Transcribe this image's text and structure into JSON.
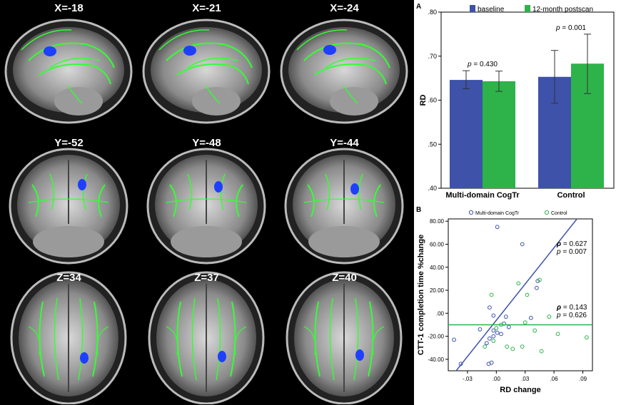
{
  "brain_slices": [
    {
      "label": "X=-18",
      "view": "sagittal"
    },
    {
      "label": "X=-21",
      "view": "sagittal"
    },
    {
      "label": "X=-24",
      "view": "sagittal"
    },
    {
      "label": "Y=-52",
      "view": "coronal"
    },
    {
      "label": "Y=-48",
      "view": "coronal"
    },
    {
      "label": "Y=-44",
      "view": "coronal"
    },
    {
      "label": "Z=34",
      "view": "axial"
    },
    {
      "label": "Z=37",
      "view": "axial"
    },
    {
      "label": "Z=40",
      "view": "axial"
    }
  ],
  "colors": {
    "blue": "#3d52a8",
    "green": "#2db34a",
    "tract": "#33ff33",
    "cluster": "#1f3fff"
  },
  "chart_data": [
    {
      "panel": "A",
      "type": "bar",
      "categories": [
        "Multi-domain CogTr",
        "Control"
      ],
      "series": [
        {
          "name": "baseline",
          "values": [
            0.646,
            0.653
          ],
          "ci_low": [
            0.626,
            0.593
          ],
          "ci_high": [
            0.667,
            0.713
          ],
          "color": "#3d52a8"
        },
        {
          "name": "12-month postscan",
          "values": [
            0.643,
            0.683
          ],
          "ci_low": [
            0.62,
            0.615
          ],
          "ci_high": [
            0.666,
            0.75
          ],
          "color": "#2db34a"
        }
      ],
      "ylabel": "RD",
      "ylim": [
        0.4,
        0.8
      ],
      "yticks": [
        ".40",
        ".50",
        ".60",
        ".70",
        ".80"
      ],
      "annotations": [
        {
          "prefix": "p",
          "text": " = 0.430"
        },
        {
          "prefix": "p",
          "text": " = 0.001"
        }
      ],
      "legend_position": "top"
    },
    {
      "panel": "B",
      "type": "scatter",
      "xlabel": "RD change",
      "ylabel": "CTT-1 completion time %change",
      "xlim": [
        -0.05,
        0.1
      ],
      "ylim": [
        -50,
        82
      ],
      "xticks": [
        {
          "value": -0.03,
          "label": "-.03"
        },
        {
          "value": 0.0,
          "label": ".00"
        },
        {
          "value": 0.03,
          "label": ".03"
        },
        {
          "value": 0.06,
          "label": ".06"
        },
        {
          "value": 0.09,
          "label": ".09"
        }
      ],
      "yticks": [
        {
          "value": -40,
          "label": "-40.00"
        },
        {
          "value": -20,
          "label": "-20.00"
        },
        {
          "value": 0,
          "label": ".00"
        },
        {
          "value": 20,
          "label": "20.00"
        },
        {
          "value": 40,
          "label": "40.00"
        },
        {
          "value": 60,
          "label": "60.00"
        },
        {
          "value": 80,
          "label": "80.00"
        }
      ],
      "series": [
        {
          "name": "Multi-domain CogTr",
          "color": "#3d52a8",
          "points": [
            [
              0.001,
              75
            ],
            [
              0.027,
              60
            ],
            [
              0.043,
              28
            ],
            [
              0.042,
              22
            ],
            [
              -0.007,
              5
            ],
            [
              -0.003,
              -2
            ],
            [
              0.01,
              -3
            ],
            [
              0.036,
              -4
            ],
            [
              0.008,
              -9
            ],
            [
              -0.017,
              -14
            ],
            [
              0.013,
              -12
            ],
            [
              -0.003,
              -15
            ],
            [
              -0.003,
              -20
            ],
            [
              0.005,
              -18
            ],
            [
              -0.007,
              -22
            ],
            [
              0.001,
              -17
            ],
            [
              -0.01,
              -26
            ],
            [
              -0.044,
              -23
            ],
            [
              -0.037,
              -44
            ],
            [
              -0.008,
              -44
            ],
            [
              -0.005,
              -43
            ]
          ],
          "fit": {
            "intercept": -6.1,
            "slope": 1050
          },
          "stats": [
            {
              "prefix": "ρ",
              "text": " = 0.627"
            },
            {
              "prefix": "p",
              "text": " = 0.007"
            }
          ]
        },
        {
          "name": "Control",
          "color": "#2db34a",
          "points": [
            [
              0.023,
              26
            ],
            [
              -0.005,
              16
            ],
            [
              0.032,
              16
            ],
            [
              0.045,
              29
            ],
            [
              0.03,
              -8
            ],
            [
              0.055,
              -3
            ],
            [
              0.04,
              -15
            ],
            [
              0.064,
              -18
            ],
            [
              0.027,
              -29
            ],
            [
              -0.012,
              -29
            ],
            [
              0.011,
              -29
            ],
            [
              -0.003,
              -24
            ],
            [
              0.017,
              -31
            ],
            [
              0.047,
              -33
            ],
            [
              0.094,
              -21
            ],
            [
              0.0,
              -13
            ],
            [
              0.005,
              -10
            ]
          ],
          "fit": {
            "intercept": -10.0,
            "slope": 0
          },
          "stats": [
            {
              "prefix": "ρ",
              "text": " = 0.143"
            },
            {
              "prefix": "p",
              "text": " = 0.626"
            }
          ]
        }
      ],
      "legend_position": "top"
    }
  ],
  "labels": {
    "panelA": "A",
    "panelB": "B"
  }
}
